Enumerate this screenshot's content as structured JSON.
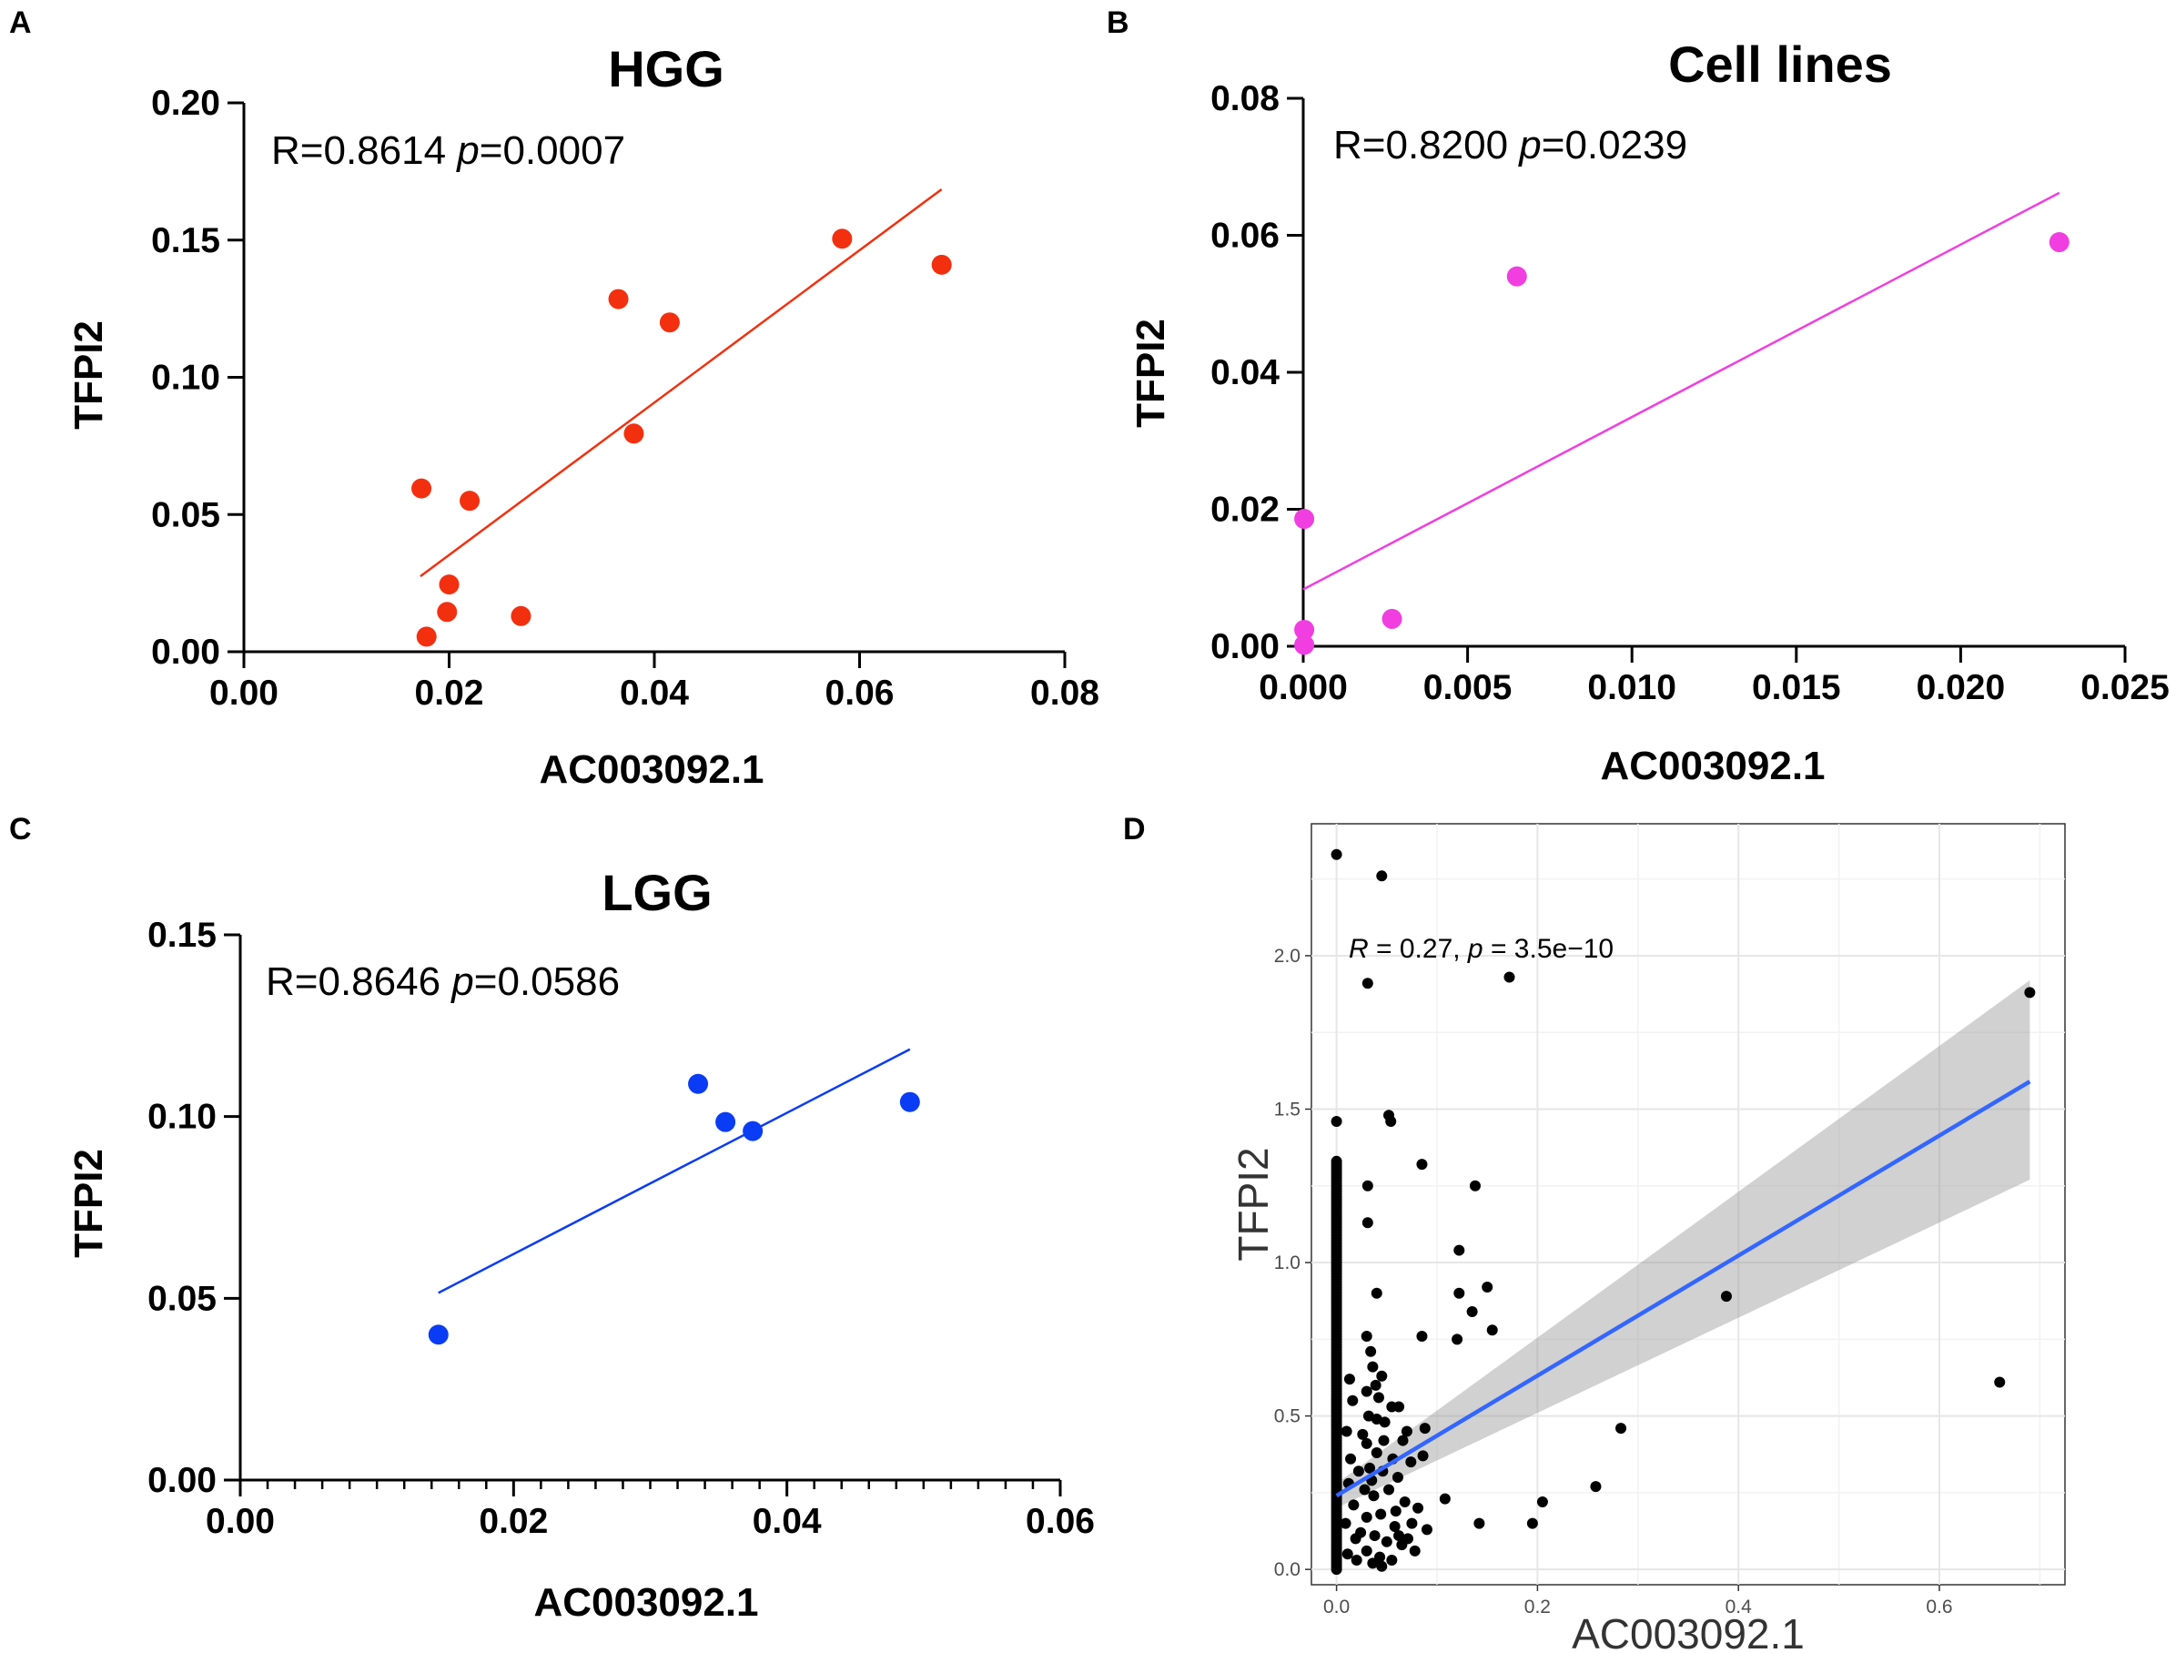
{
  "chart_data": [
    {
      "panel": "A",
      "type": "scatter",
      "title": "HGG",
      "xlabel": "AC003092.1",
      "ylabel": "TFPI2",
      "xlim": [
        0,
        0.08
      ],
      "ylim": [
        0,
        0.2
      ],
      "xticks": [
        0,
        0.02,
        0.04,
        0.06,
        0.08
      ],
      "xtick_labels": [
        "0.00",
        "0.02",
        "0.04",
        "0.06",
        "0.08"
      ],
      "yticks": [
        0,
        0.05,
        0.1,
        0.15,
        0.2
      ],
      "ytick_labels": [
        "0.00",
        "0.05",
        "0.10",
        "0.15",
        "0.20"
      ],
      "color": "#f2300f",
      "annotation": {
        "r_text": "R=0.8614 ",
        "p_sym": "p",
        "p_text": "=0.0007"
      },
      "points": [
        {
          "x": 0.0173,
          "y": 0.0595
        },
        {
          "x": 0.0178,
          "y": 0.0055
        },
        {
          "x": 0.0198,
          "y": 0.0145
        },
        {
          "x": 0.02,
          "y": 0.0245
        },
        {
          "x": 0.022,
          "y": 0.055
        },
        {
          "x": 0.027,
          "y": 0.013
        },
        {
          "x": 0.0365,
          "y": 0.1285
        },
        {
          "x": 0.038,
          "y": 0.0795
        },
        {
          "x": 0.0415,
          "y": 0.12
        },
        {
          "x": 0.0583,
          "y": 0.1505
        },
        {
          "x": 0.068,
          "y": 0.141
        }
      ],
      "fit_line": {
        "x": [
          0.0172,
          0.068
        ],
        "y": [
          0.0275,
          0.1685
        ]
      }
    },
    {
      "panel": "B",
      "type": "scatter",
      "title": "Cell lines",
      "xlabel": "AC003092.1",
      "ylabel": "TFPI2",
      "xlim": [
        0,
        0.025
      ],
      "ylim": [
        0,
        0.08
      ],
      "xticks": [
        0,
        0.005,
        0.01,
        0.015,
        0.02,
        0.025
      ],
      "xtick_labels": [
        "0.000",
        "0.005",
        "0.010",
        "0.015",
        "0.020",
        "0.025"
      ],
      "yticks": [
        0,
        0.02,
        0.04,
        0.06,
        0.08
      ],
      "ytick_labels": [
        "0.00",
        "0.02",
        "0.04",
        "0.06",
        "0.08"
      ],
      "color": "#f03ee0",
      "annotation": {
        "r_text": "R=0.8200 ",
        "p_sym": "p",
        "p_text": "=0.0239"
      },
      "points": [
        {
          "x": 3e-05,
          "y": 0.0186
        },
        {
          "x": 3e-05,
          "y": 0.0024
        },
        {
          "x": 3e-05,
          "y": 0.0002
        },
        {
          "x": 0.0027,
          "y": 0.004
        },
        {
          "x": 0.0065,
          "y": 0.054
        },
        {
          "x": 0.023,
          "y": 0.059
        }
      ],
      "fit_line": {
        "x": [
          0.0,
          0.023
        ],
        "y": [
          0.0083,
          0.0662
        ]
      }
    },
    {
      "panel": "C",
      "type": "scatter",
      "title": "LGG",
      "xlabel": "AC003092.1",
      "ylabel": "TFPI2",
      "xlim": [
        0,
        0.06
      ],
      "ylim": [
        0,
        0.15
      ],
      "xticks": [
        0,
        0.02,
        0.04,
        0.06
      ],
      "xtick_labels": [
        "0.00",
        "0.02",
        "0.04",
        "0.06"
      ],
      "yticks": [
        0,
        0.05,
        0.1,
        0.15
      ],
      "ytick_labels": [
        "0.00",
        "0.05",
        "0.10",
        "0.15"
      ],
      "minor_x_step": 0.002,
      "color": "#0a3cf5",
      "annotation": {
        "r_text": "R=0.8646 ",
        "p_sym": "p",
        "p_text": "=0.0586"
      },
      "points": [
        {
          "x": 0.0145,
          "y": 0.04
        },
        {
          "x": 0.0335,
          "y": 0.109
        },
        {
          "x": 0.0355,
          "y": 0.0985
        },
        {
          "x": 0.0375,
          "y": 0.096
        },
        {
          "x": 0.049,
          "y": 0.104
        }
      ],
      "fit_line": {
        "x": [
          0.0145,
          0.049
        ],
        "y": [
          0.0515,
          0.1185
        ]
      }
    },
    {
      "panel": "D",
      "type": "scatter",
      "style": "ggplot",
      "xlabel": "AC003092.1",
      "ylabel": "TFPI2",
      "xlim": [
        -0.025,
        0.725
      ],
      "ylim": [
        -0.05,
        2.43
      ],
      "xticks": [
        0,
        0.2,
        0.4,
        0.6
      ],
      "xtick_labels": [
        "0.0",
        "0.2",
        "0.4",
        "0.6"
      ],
      "yticks": [
        0,
        0.5,
        1.0,
        1.5,
        2.0
      ],
      "ytick_labels": [
        "0.0",
        "0.5",
        "1.0",
        "1.5",
        "2.0"
      ],
      "color": "#000000",
      "line_color": "#3366ff",
      "band_color": "#999999",
      "annotation": {
        "r_sym": "R",
        "r_text": " = 0.27, ",
        "p_sym": "p",
        "p_text": " = 3.5e−10"
      },
      "points": [
        {
          "x": 0.0,
          "y": 2.33
        },
        {
          "x": 0.045,
          "y": 2.26
        },
        {
          "x": 0.031,
          "y": 1.91
        },
        {
          "x": 0.172,
          "y": 1.93
        },
        {
          "x": 0.69,
          "y": 1.88
        },
        {
          "x": 0.052,
          "y": 1.48
        },
        {
          "x": 0.054,
          "y": 1.46
        },
        {
          "x": 0.0,
          "y": 1.46
        },
        {
          "x": 0.031,
          "y": 1.25
        },
        {
          "x": 0.085,
          "y": 1.32
        },
        {
          "x": 0.138,
          "y": 1.25
        },
        {
          "x": 0.031,
          "y": 1.13
        },
        {
          "x": 0.122,
          "y": 1.04
        },
        {
          "x": 0.04,
          "y": 0.9
        },
        {
          "x": 0.122,
          "y": 0.9
        },
        {
          "x": 0.135,
          "y": 0.84
        },
        {
          "x": 0.15,
          "y": 0.92
        },
        {
          "x": 0.155,
          "y": 0.78
        },
        {
          "x": 0.12,
          "y": 0.75
        },
        {
          "x": 0.085,
          "y": 0.76
        },
        {
          "x": 0.388,
          "y": 0.89
        },
        {
          "x": 0.66,
          "y": 0.61
        },
        {
          "x": 0.283,
          "y": 0.46
        },
        {
          "x": 0.088,
          "y": 0.46
        },
        {
          "x": 0.258,
          "y": 0.27
        },
        {
          "x": 0.205,
          "y": 0.22
        },
        {
          "x": 0.195,
          "y": 0.15
        },
        {
          "x": 0.142,
          "y": 0.15
        },
        {
          "x": 0.108,
          "y": 0.23
        },
        {
          "x": 0.03,
          "y": 0.76
        },
        {
          "x": 0.034,
          "y": 0.71
        },
        {
          "x": 0.036,
          "y": 0.66
        },
        {
          "x": 0.039,
          "y": 0.6
        },
        {
          "x": 0.045,
          "y": 0.63
        },
        {
          "x": 0.03,
          "y": 0.58
        },
        {
          "x": 0.042,
          "y": 0.56
        },
        {
          "x": 0.055,
          "y": 0.53
        },
        {
          "x": 0.062,
          "y": 0.53
        },
        {
          "x": 0.032,
          "y": 0.5
        },
        {
          "x": 0.048,
          "y": 0.48
        },
        {
          "x": 0.066,
          "y": 0.42
        },
        {
          "x": 0.07,
          "y": 0.45
        },
        {
          "x": 0.03,
          "y": 0.41
        },
        {
          "x": 0.04,
          "y": 0.38
        },
        {
          "x": 0.056,
          "y": 0.36
        },
        {
          "x": 0.074,
          "y": 0.35
        },
        {
          "x": 0.086,
          "y": 0.37
        },
        {
          "x": 0.033,
          "y": 0.33
        },
        {
          "x": 0.046,
          "y": 0.32
        },
        {
          "x": 0.061,
          "y": 0.3
        },
        {
          "x": 0.052,
          "y": 0.26
        },
        {
          "x": 0.037,
          "y": 0.24
        },
        {
          "x": 0.068,
          "y": 0.22
        },
        {
          "x": 0.081,
          "y": 0.2
        },
        {
          "x": 0.044,
          "y": 0.18
        },
        {
          "x": 0.03,
          "y": 0.17
        },
        {
          "x": 0.058,
          "y": 0.14
        },
        {
          "x": 0.075,
          "y": 0.15
        },
        {
          "x": 0.09,
          "y": 0.13
        },
        {
          "x": 0.038,
          "y": 0.11
        },
        {
          "x": 0.05,
          "y": 0.09
        },
        {
          "x": 0.065,
          "y": 0.08
        },
        {
          "x": 0.03,
          "y": 0.06
        },
        {
          "x": 0.043,
          "y": 0.04
        },
        {
          "x": 0.055,
          "y": 0.03
        },
        {
          "x": 0.036,
          "y": 0.02
        },
        {
          "x": 0.045,
          "y": 0.01
        },
        {
          "x": 0.078,
          "y": 0.06
        },
        {
          "x": 0.062,
          "y": 0.11
        },
        {
          "x": 0.01,
          "y": 0.45
        },
        {
          "x": 0.014,
          "y": 0.36
        },
        {
          "x": 0.012,
          "y": 0.28
        },
        {
          "x": 0.017,
          "y": 0.21
        },
        {
          "x": 0.009,
          "y": 0.15
        },
        {
          "x": 0.019,
          "y": 0.1
        },
        {
          "x": 0.011,
          "y": 0.05
        },
        {
          "x": 0.022,
          "y": 0.32
        },
        {
          "x": 0.024,
          "y": 0.12
        },
        {
          "x": 0.016,
          "y": 0.55
        },
        {
          "x": 0.02,
          "y": 0.03
        },
        {
          "x": 0.026,
          "y": 0.44
        },
        {
          "x": 0.013,
          "y": 0.62
        },
        {
          "x": 0.028,
          "y": 0.26
        },
        {
          "x": 0.047,
          "y": 0.42
        },
        {
          "x": 0.04,
          "y": 0.49
        },
        {
          "x": 0.059,
          "y": 0.19
        },
        {
          "x": 0.035,
          "y": 0.29
        },
        {
          "x": 0.071,
          "y": 0.1
        }
      ],
      "dense_column": {
        "x": 0.0,
        "y_from": 0.0,
        "y_to": 1.33,
        "n": 150
      },
      "fit_line": {
        "x": [
          0.0,
          0.69
        ],
        "y": [
          0.24,
          1.59
        ]
      },
      "confidence_band": {
        "x": [
          0.0,
          0.69
        ],
        "upper": [
          0.28,
          1.92
        ],
        "lower": [
          0.2,
          1.27
        ]
      }
    }
  ],
  "panel_labels": {
    "a": "A",
    "b": "B",
    "c": "C",
    "d": "D"
  }
}
